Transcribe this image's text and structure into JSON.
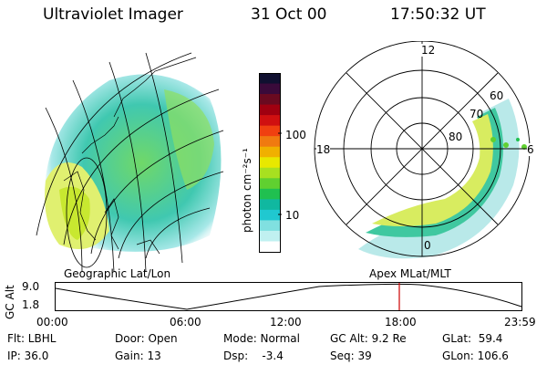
{
  "header": {
    "instrument": "Ultraviolet Imager",
    "date": "31 Oct 00",
    "time": "17:50:32 UT"
  },
  "colorbar": {
    "unit_label": "photon cm⁻²s⁻¹",
    "ticks": [
      "100",
      "10"
    ],
    "colors": [
      "#101030",
      "#3a0a3a",
      "#6a0a20",
      "#a00010",
      "#d01010",
      "#f04010",
      "#f07a10",
      "#f0b000",
      "#e8e800",
      "#a8e020",
      "#60d030",
      "#20c050",
      "#10b8a0",
      "#20c8d0",
      "#80e0e0",
      "#c0f0f0",
      "#ffffff"
    ]
  },
  "left_panel": {
    "label": "Geographic Lat/Lon"
  },
  "right_panel": {
    "label": "Apex MLat/MLT",
    "mlt_labels": {
      "top": "12",
      "left": "18",
      "right": "6",
      "bottom": "0"
    },
    "lat_labels": [
      "60",
      "70",
      "80"
    ]
  },
  "timeline": {
    "ylabel": "GC Alt",
    "y_ticks": [
      "9.0",
      "1.8"
    ],
    "x_ticks": [
      "00:00",
      "06:00",
      "12:00",
      "18:00",
      "23:59"
    ],
    "current_marker_color": "#cc0000"
  },
  "info": {
    "flt": "Flt: LBHL",
    "door": "Door: Open",
    "mode": "Mode: Normal",
    "gc_alt": "GC Alt: 9.2 Re",
    "glat": "GLat:  59.4",
    "ip": "IP: 36.0",
    "gain": "Gain: 13",
    "dsp": "Dsp:    -3.4",
    "seq": "Seq: 39",
    "glon": "GLon: 106.6"
  }
}
